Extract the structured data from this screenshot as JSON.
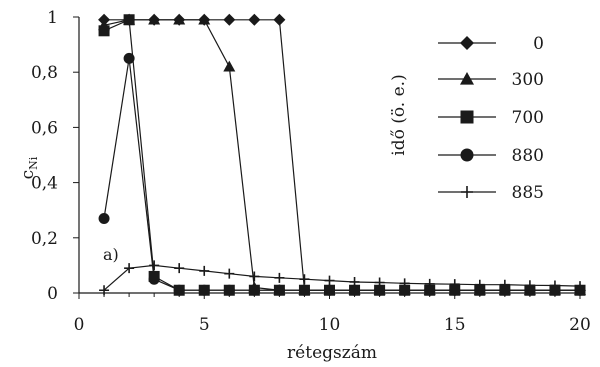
{
  "chart_data": {
    "type": "line",
    "title": "",
    "xlabel": "rétegszám",
    "ylabel_main": "c",
    "ylabel_sub": "Ni",
    "xlim": [
      0,
      20
    ],
    "ylim": [
      0,
      1
    ],
    "x_ticks": [
      "0",
      "5",
      "10",
      "15",
      "20"
    ],
    "y_ticks": [
      "0",
      "0,2",
      "0,4",
      "0,6",
      "0,8",
      "1"
    ],
    "legend_title": "idő (ö. e.)",
    "legend_placement": "right",
    "annotation": "a)",
    "grid": false,
    "series": [
      {
        "name": "0",
        "marker": "diamond",
        "x": [
          1,
          2,
          3,
          4,
          5,
          6,
          7,
          8,
          9,
          10,
          11,
          12,
          13,
          14,
          15,
          16,
          17,
          18,
          19,
          20
        ],
        "y": [
          0.99,
          0.99,
          0.99,
          0.99,
          0.99,
          0.99,
          0.99,
          0.99,
          0.01,
          0.01,
          0.01,
          0.01,
          0.01,
          0.01,
          0.01,
          0.01,
          0.01,
          0.01,
          0.01,
          0.01
        ]
      },
      {
        "name": "300",
        "marker": "triangle",
        "x": [
          1,
          2,
          3,
          4,
          5,
          6,
          7,
          8,
          9,
          10,
          11,
          12,
          13,
          14,
          15,
          16,
          17,
          18,
          19,
          20
        ],
        "y": [
          0.97,
          0.99,
          0.99,
          0.99,
          0.99,
          0.82,
          0.02,
          0.01,
          0.01,
          0.01,
          0.01,
          0.01,
          0.01,
          0.01,
          0.01,
          0.01,
          0.01,
          0.01,
          0.01,
          0.01
        ]
      },
      {
        "name": "700",
        "marker": "square",
        "x": [
          1,
          2,
          3,
          4,
          5,
          6,
          7,
          8,
          9,
          10,
          11,
          12,
          13,
          14,
          15,
          16,
          17,
          18,
          19,
          20
        ],
        "y": [
          0.95,
          0.99,
          0.06,
          0.01,
          0.01,
          0.01,
          0.01,
          0.01,
          0.01,
          0.01,
          0.01,
          0.01,
          0.01,
          0.01,
          0.01,
          0.01,
          0.01,
          0.01,
          0.01,
          0.01
        ]
      },
      {
        "name": "880",
        "marker": "circle",
        "x": [
          1,
          2,
          3,
          4,
          5,
          6,
          7,
          8,
          9,
          10,
          11,
          12,
          13,
          14,
          15,
          16,
          17,
          18,
          19,
          20
        ],
        "y": [
          0.27,
          0.85,
          0.05,
          0.01,
          0.01,
          0.01,
          0.01,
          0.01,
          0.01,
          0.01,
          0.01,
          0.01,
          0.01,
          0.01,
          0.01,
          0.01,
          0.01,
          0.01,
          0.01,
          0.01
        ]
      },
      {
        "name": "885",
        "marker": "plus",
        "x": [
          1,
          2,
          3,
          4,
          5,
          6,
          7,
          8,
          9,
          10,
          11,
          12,
          13,
          14,
          15,
          16,
          17,
          18,
          19,
          20
        ],
        "y": [
          0.01,
          0.09,
          0.1,
          0.09,
          0.08,
          0.07,
          0.06,
          0.055,
          0.05,
          0.045,
          0.04,
          0.038,
          0.035,
          0.033,
          0.032,
          0.03,
          0.03,
          0.028,
          0.027,
          0.025
        ]
      }
    ]
  }
}
